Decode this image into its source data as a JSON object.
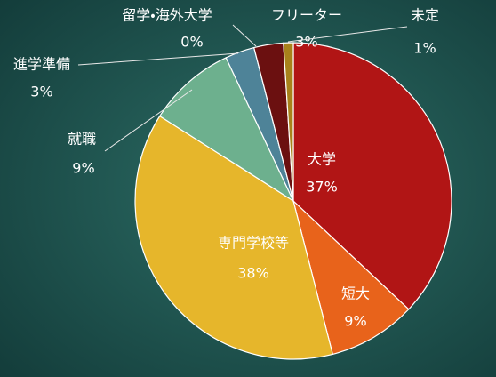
{
  "chart_data": {
    "type": "pie",
    "categories": [
      "大学",
      "短大",
      "専門学校等",
      "就職",
      "進学準備",
      "留学・海外大学",
      "フリーター",
      "未定"
    ],
    "values": [
      37,
      9,
      38,
      9,
      3,
      0,
      3,
      1
    ],
    "value_labels": [
      "37%",
      "9%",
      "38%",
      "9%",
      "3%",
      "0%",
      "3%",
      "1%"
    ],
    "colors": [
      "#b11515",
      "#e8631b",
      "#e6b62b",
      "#6db08e",
      "#4e8398",
      "#8e2d55",
      "#6b1010",
      "#a8821b"
    ]
  }
}
